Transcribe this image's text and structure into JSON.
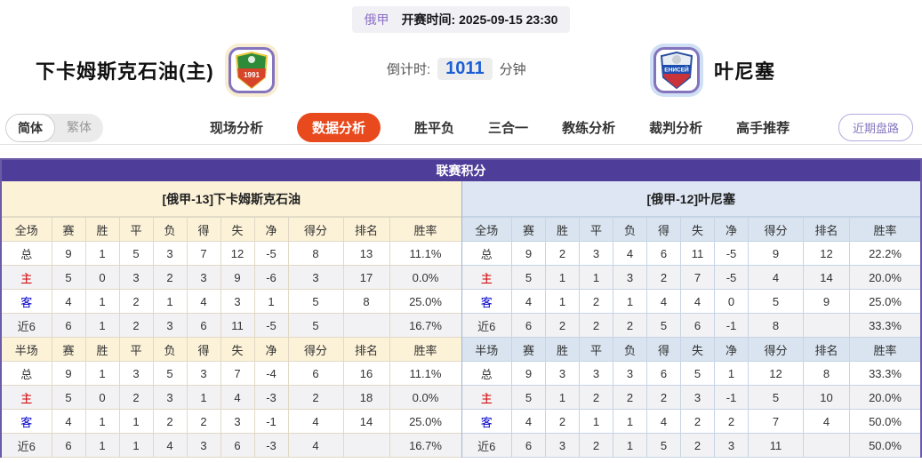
{
  "header": {
    "league": "俄甲",
    "kickoff": "开赛时间:  2025-09-15 23:30",
    "home_team": "下卡姆斯克石油(主)",
    "away_team": "叶尼塞",
    "countdown_label": "倒计时:",
    "countdown_value": "1011",
    "countdown_unit": "分钟",
    "home_logo_text": "1991",
    "away_logo_text": "ЕНИСЕЙ"
  },
  "nav": {
    "lang_options": [
      "简体",
      "繁体"
    ],
    "active_lang": "简体",
    "tabs": [
      "现场分析",
      "数据分析",
      "胜平负",
      "三合一",
      "教练分析",
      "裁判分析",
      "高手推荐"
    ],
    "active_tab": "数据分析",
    "recent_button": "近期盘路"
  },
  "section": {
    "title": "联赛积分"
  },
  "stat_columns": [
    "赛",
    "胜",
    "平",
    "负",
    "得",
    "失",
    "净",
    "得分",
    "排名",
    "胜率"
  ],
  "tables": [
    {
      "team_title": "[俄甲-13]下卡姆斯克石油",
      "full": {
        "scope": "全场",
        "rows": [
          {
            "label": "总",
            "style": "plain",
            "values": [
              "9",
              "1",
              "5",
              "3",
              "7",
              "12",
              "-5",
              "8",
              "13",
              "11.1%"
            ]
          },
          {
            "label": "主",
            "style": "red",
            "values": [
              "5",
              "0",
              "3",
              "2",
              "3",
              "9",
              "-6",
              "3",
              "17",
              "0.0%"
            ]
          },
          {
            "label": "客",
            "style": "blue",
            "values": [
              "4",
              "1",
              "2",
              "1",
              "4",
              "3",
              "1",
              "5",
              "8",
              "25.0%"
            ]
          },
          {
            "label": "近6",
            "style": "plain",
            "values": [
              "6",
              "1",
              "2",
              "3",
              "6",
              "11",
              "-5",
              "5",
              "",
              "16.7%"
            ]
          }
        ]
      },
      "half": {
        "scope": "半场",
        "rows": [
          {
            "label": "总",
            "style": "plain",
            "values": [
              "9",
              "1",
              "3",
              "5",
              "3",
              "7",
              "-4",
              "6",
              "16",
              "11.1%"
            ]
          },
          {
            "label": "主",
            "style": "red",
            "values": [
              "5",
              "0",
              "2",
              "3",
              "1",
              "4",
              "-3",
              "2",
              "18",
              "0.0%"
            ]
          },
          {
            "label": "客",
            "style": "blue",
            "values": [
              "4",
              "1",
              "1",
              "2",
              "2",
              "3",
              "-1",
              "4",
              "14",
              "25.0%"
            ]
          },
          {
            "label": "近6",
            "style": "plain",
            "values": [
              "6",
              "1",
              "1",
              "4",
              "3",
              "6",
              "-3",
              "4",
              "",
              "16.7%"
            ]
          }
        ]
      }
    },
    {
      "team_title": "[俄甲-12]叶尼塞",
      "full": {
        "scope": "全场",
        "rows": [
          {
            "label": "总",
            "style": "plain",
            "values": [
              "9",
              "2",
              "3",
              "4",
              "6",
              "11",
              "-5",
              "9",
              "12",
              "22.2%"
            ]
          },
          {
            "label": "主",
            "style": "red",
            "values": [
              "5",
              "1",
              "1",
              "3",
              "2",
              "7",
              "-5",
              "4",
              "14",
              "20.0%"
            ]
          },
          {
            "label": "客",
            "style": "blue",
            "values": [
              "4",
              "1",
              "2",
              "1",
              "4",
              "4",
              "0",
              "5",
              "9",
              "25.0%"
            ]
          },
          {
            "label": "近6",
            "style": "plain",
            "values": [
              "6",
              "2",
              "2",
              "2",
              "5",
              "6",
              "-1",
              "8",
              "",
              "33.3%"
            ]
          }
        ]
      },
      "half": {
        "scope": "半场",
        "rows": [
          {
            "label": "总",
            "style": "plain",
            "values": [
              "9",
              "3",
              "3",
              "3",
              "6",
              "5",
              "1",
              "12",
              "8",
              "33.3%"
            ]
          },
          {
            "label": "主",
            "style": "red",
            "values": [
              "5",
              "1",
              "2",
              "2",
              "2",
              "3",
              "-1",
              "5",
              "10",
              "20.0%"
            ]
          },
          {
            "label": "客",
            "style": "blue",
            "values": [
              "4",
              "2",
              "1",
              "1",
              "4",
              "2",
              "2",
              "7",
              "4",
              "50.0%"
            ]
          },
          {
            "label": "近6",
            "style": "plain",
            "values": [
              "6",
              "3",
              "2",
              "1",
              "5",
              "2",
              "3",
              "11",
              "",
              "50.0%"
            ]
          }
        ]
      }
    }
  ],
  "colors": {
    "section_purple": "#4f3e99",
    "active_tab_red": "#e8491d",
    "countdown_blue": "#1b5ed6",
    "home_header_cream": "#fcf2d8",
    "away_header_blue": "#d9e4f0",
    "home_label_red": "#d10000",
    "away_label_blue": "#0000cc"
  }
}
